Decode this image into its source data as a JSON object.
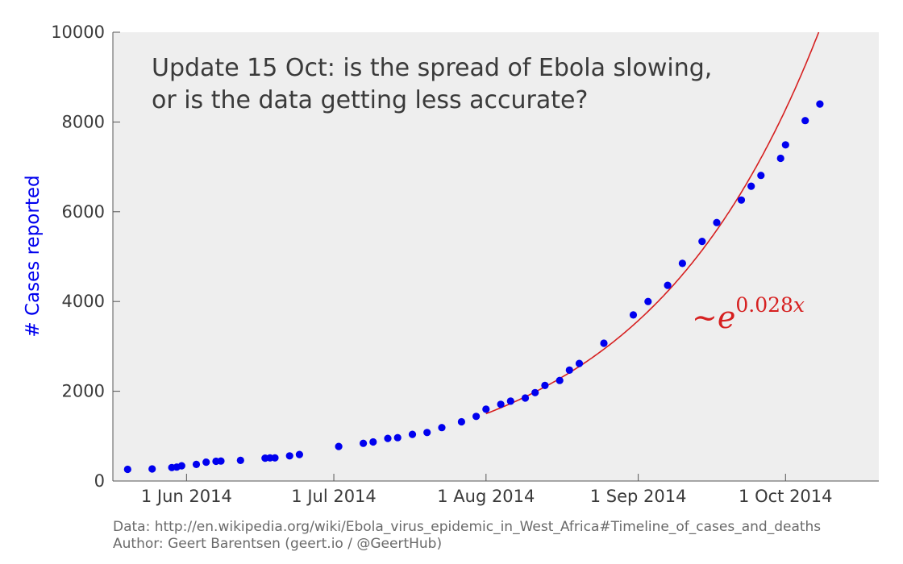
{
  "chart_data": {
    "type": "scatter",
    "title_lines": [
      "Update 15 Oct: is the spread of Ebola slowing,",
      "or is the data getting less accurate?"
    ],
    "ylabel": "# Cases reported",
    "xlabel": "",
    "ylim": [
      0,
      10000
    ],
    "xlim": [
      "2014-05-17",
      "2014-10-20"
    ],
    "y_ticks": [
      0,
      2000,
      4000,
      6000,
      8000,
      10000
    ],
    "x_ticks": [
      {
        "date": "2014-06-01",
        "label": "1 Jun 2014"
      },
      {
        "date": "2014-07-01",
        "label": "1 Jul 2014"
      },
      {
        "date": "2014-08-01",
        "label": "1 Aug 2014"
      },
      {
        "date": "2014-09-01",
        "label": "1 Sep 2014"
      },
      {
        "date": "2014-10-01",
        "label": "1 Oct 2014"
      }
    ],
    "grid": false,
    "background": "#eeeeee",
    "series": [
      {
        "marker_color": "#0000ee",
        "points": [
          [
            "2014-05-20",
            260
          ],
          [
            "2014-05-25",
            270
          ],
          [
            "2014-05-29",
            300
          ],
          [
            "2014-05-30",
            310
          ],
          [
            "2014-05-31",
            340
          ],
          [
            "2014-06-03",
            370
          ],
          [
            "2014-06-05",
            420
          ],
          [
            "2014-06-07",
            440
          ],
          [
            "2014-06-08",
            445
          ],
          [
            "2014-06-12",
            460
          ],
          [
            "2014-06-17",
            510
          ],
          [
            "2014-06-18",
            515
          ],
          [
            "2014-06-19",
            515
          ],
          [
            "2014-06-22",
            560
          ],
          [
            "2014-06-24",
            590
          ],
          [
            "2014-07-02",
            770
          ],
          [
            "2014-07-07",
            840
          ],
          [
            "2014-07-09",
            870
          ],
          [
            "2014-07-12",
            950
          ],
          [
            "2014-07-14",
            965
          ],
          [
            "2014-07-17",
            1040
          ],
          [
            "2014-07-20",
            1080
          ],
          [
            "2014-07-23",
            1190
          ],
          [
            "2014-07-27",
            1320
          ],
          [
            "2014-07-30",
            1440
          ],
          [
            "2014-08-01",
            1600
          ],
          [
            "2014-08-04",
            1710
          ],
          [
            "2014-08-06",
            1780
          ],
          [
            "2014-08-09",
            1850
          ],
          [
            "2014-08-11",
            1970
          ],
          [
            "2014-08-13",
            2130
          ],
          [
            "2014-08-16",
            2240
          ],
          [
            "2014-08-18",
            2470
          ],
          [
            "2014-08-20",
            2620
          ],
          [
            "2014-08-25",
            3070
          ],
          [
            "2014-08-31",
            3700
          ],
          [
            "2014-09-03",
            4000
          ],
          [
            "2014-09-07",
            4360
          ],
          [
            "2014-09-10",
            4850
          ],
          [
            "2014-09-14",
            5340
          ],
          [
            "2014-09-17",
            5760
          ],
          [
            "2014-09-22",
            6260
          ],
          [
            "2014-09-24",
            6570
          ],
          [
            "2014-09-26",
            6810
          ],
          [
            "2014-09-30",
            7190
          ],
          [
            "2014-10-01",
            7490
          ],
          [
            "2014-10-05",
            8030
          ],
          [
            "2014-10-08",
            8400
          ]
        ]
      }
    ],
    "fit_curve": {
      "color": "#d62020",
      "type": "exponential",
      "rate_per_day": 0.028,
      "anchor": [
        "2014-08-01",
        1500
      ],
      "x_range": [
        "2014-08-01",
        "2014-10-20"
      ]
    },
    "annotation": {
      "prefix": "~e",
      "exponent": "0.028",
      "exponent_var": "x",
      "color": "#d62020"
    }
  },
  "footer": {
    "source": "Data: http://en.wikipedia.org/wiki/Ebola_virus_epidemic_in_West_Africa#Timeline_of_cases_and_deaths",
    "author": "Author: Geert Barentsen (geert.io / @GeertHub)"
  }
}
